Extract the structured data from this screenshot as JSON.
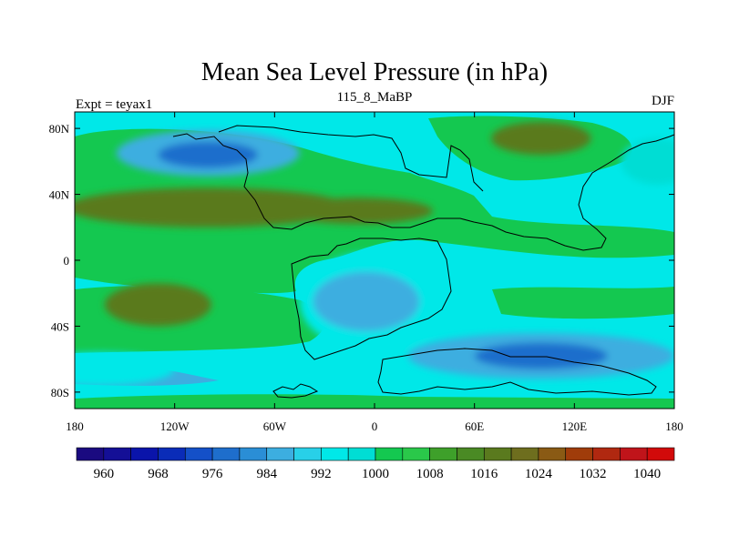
{
  "chart_data": {
    "type": "heatmap",
    "title": "Mean Sea Level Pressure (in hPa)",
    "left_label": "Expt = teyax1",
    "center_label": "115_8_MaBP",
    "right_label": "DJF",
    "x_ticks": [
      {
        "value": -180,
        "label": "180"
      },
      {
        "value": -120,
        "label": "120W"
      },
      {
        "value": -60,
        "label": "60W"
      },
      {
        "value": 0,
        "label": "0"
      },
      {
        "value": 60,
        "label": "60E"
      },
      {
        "value": 120,
        "label": "120E"
      },
      {
        "value": 180,
        "label": "180"
      }
    ],
    "y_ticks": [
      {
        "value": 80,
        "label": "80N"
      },
      {
        "value": 40,
        "label": "40N"
      },
      {
        "value": 0,
        "label": "0"
      },
      {
        "value": -40,
        "label": "40S"
      },
      {
        "value": -80,
        "label": "80S"
      }
    ],
    "xlim": [
      -180,
      180
    ],
    "ylim": [
      -90,
      90
    ],
    "colorbar": {
      "levels": [
        956,
        960,
        964,
        968,
        972,
        976,
        980,
        984,
        988,
        992,
        996,
        1000,
        1004,
        1008,
        1012,
        1016,
        1020,
        1024,
        1028,
        1032,
        1036,
        1040
      ],
      "labels": [
        "960",
        "968",
        "976",
        "984",
        "992",
        "1000",
        "1008",
        "1016",
        "1024",
        "1032",
        "1040"
      ],
      "colors": [
        "#1a0a80",
        "#140f96",
        "#0a14aa",
        "#0a2cb8",
        "#1450c8",
        "#1e6ecc",
        "#2a8ed6",
        "#3caee0",
        "#28d0e8",
        "#00e8e8",
        "#00ddd4",
        "#14c850",
        "#2ac84a",
        "#3ea02a",
        "#4a8a24",
        "#5a7a1e",
        "#6e6e1e",
        "#8a5a14",
        "#a03c0a",
        "#b02810",
        "#c0141a",
        "#d20a0a"
      ]
    },
    "regions": [
      {
        "name": "north-atlantic-low",
        "lon": -100,
        "lat": 65,
        "rlon": 55,
        "rlat": 14,
        "value": 984
      },
      {
        "name": "north-atlantic-low-core",
        "lon": -100,
        "lat": 64,
        "rlon": 30,
        "rlat": 8,
        "value": 976
      },
      {
        "name": "north-pacific-low",
        "lon": 170,
        "lat": 60,
        "rlon": 22,
        "rlat": 14,
        "value": 996
      },
      {
        "name": "northern-high",
        "lon": -100,
        "lat": 32,
        "rlon": 85,
        "rlat": 12,
        "value": 1016
      },
      {
        "name": "northern-high-east",
        "lon": -10,
        "lat": 30,
        "rlon": 45,
        "rlat": 8,
        "value": 1016
      },
      {
        "name": "arctic-high",
        "lon": 100,
        "lat": 74,
        "rlon": 30,
        "rlat": 10,
        "value": 1016
      },
      {
        "name": "pangea-thermal-low",
        "lon": 0,
        "lat": -25,
        "rlon": 45,
        "rlat": 30,
        "value": 992
      },
      {
        "name": "pangea-thermal-low-core",
        "lon": -5,
        "lat": -25,
        "rlon": 32,
        "rlat": 18,
        "value": 984
      },
      {
        "name": "southern-high",
        "lon": -130,
        "lat": -27,
        "rlon": 32,
        "rlat": 13,
        "value": 1016
      },
      {
        "name": "southern-ocean-low",
        "lon": 100,
        "lat": -58,
        "rlon": 80,
        "rlat": 14,
        "value": 984
      },
      {
        "name": "southern-ocean-low-core",
        "lon": 100,
        "lat": -58,
        "rlon": 40,
        "rlat": 8,
        "value": 976
      },
      {
        "name": "southern-ocean-low-west",
        "lon": -165,
        "lat": -66,
        "rlon": 45,
        "rlat": 10,
        "value": 992
      }
    ]
  }
}
